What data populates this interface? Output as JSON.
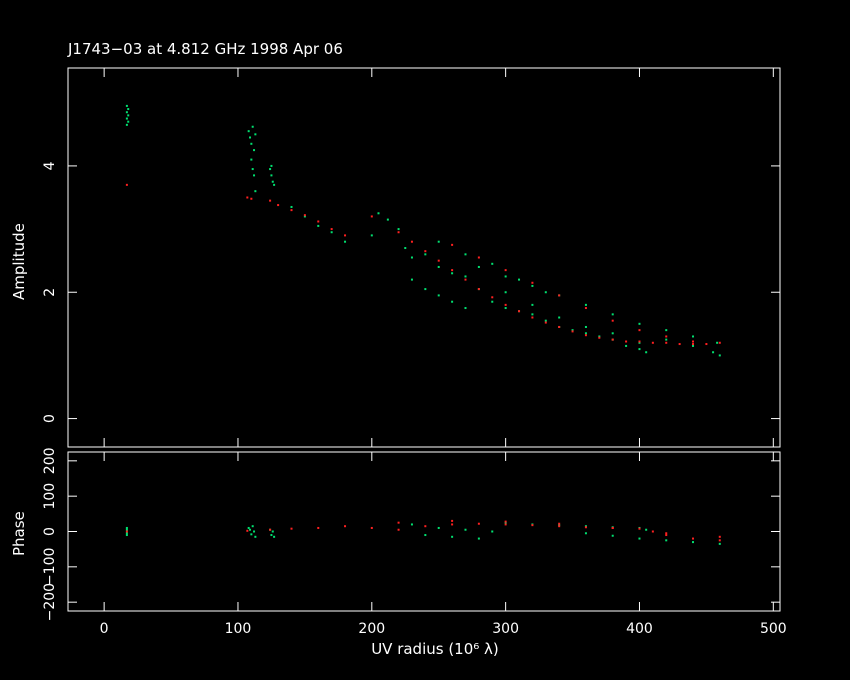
{
  "title": "J1743−03 at 4.812 GHz 1998 Apr 06",
  "colors": {
    "background": "#000000",
    "axes": "#ffffff",
    "observed": "#00e070",
    "model": "#ff2020"
  },
  "chart_data": [
    {
      "type": "scatter",
      "panel": "amplitude",
      "ylabel": "Amplitude",
      "xlim": [
        -27,
        505
      ],
      "ylim": [
        -0.45,
        5.55
      ],
      "yticks": [
        0,
        2,
        4
      ],
      "series": [
        {
          "color": "observed",
          "points": [
            [
              17,
              4.95
            ],
            [
              17,
              4.85
            ],
            [
              17,
              4.75
            ],
            [
              17,
              4.65
            ],
            [
              18,
              4.9
            ],
            [
              18,
              4.8
            ],
            [
              18,
              4.7
            ],
            [
              108,
              4.55
            ],
            [
              109,
              4.45
            ],
            [
              110,
              4.35
            ],
            [
              111,
              4.62
            ],
            [
              112,
              4.25
            ],
            [
              113,
              4.5
            ],
            [
              110,
              4.1
            ],
            [
              111,
              3.95
            ],
            [
              112,
              3.85
            ],
            [
              113,
              3.6
            ],
            [
              124,
              3.95
            ],
            [
              125,
              3.85
            ],
            [
              126,
              3.75
            ],
            [
              127,
              3.7
            ],
            [
              125,
              4.0
            ],
            [
              140,
              3.35
            ],
            [
              150,
              3.2
            ],
            [
              160,
              3.05
            ],
            [
              170,
              2.95
            ],
            [
              180,
              2.8
            ],
            [
              200,
              2.9
            ],
            [
              205,
              3.25
            ],
            [
              212,
              3.15
            ],
            [
              220,
              3.0
            ],
            [
              225,
              2.7
            ],
            [
              230,
              2.55
            ],
            [
              240,
              2.6
            ],
            [
              250,
              2.4
            ],
            [
              260,
              2.3
            ],
            [
              270,
              2.25
            ],
            [
              280,
              2.05
            ],
            [
              290,
              1.85
            ],
            [
              300,
              1.75
            ],
            [
              310,
              1.7
            ],
            [
              320,
              1.65
            ],
            [
              330,
              1.55
            ],
            [
              340,
              1.45
            ],
            [
              350,
              1.4
            ],
            [
              360,
              1.35
            ],
            [
              370,
              1.3
            ],
            [
              380,
              1.25
            ],
            [
              390,
              1.15
            ],
            [
              400,
              1.1
            ],
            [
              405,
              1.05
            ],
            [
              300,
              2.0
            ],
            [
              320,
              1.8
            ],
            [
              340,
              1.6
            ],
            [
              360,
              1.45
            ],
            [
              380,
              1.35
            ],
            [
              400,
              1.2
            ],
            [
              420,
              1.25
            ],
            [
              440,
              1.15
            ],
            [
              455,
              1.05
            ],
            [
              460,
              1.0
            ],
            [
              280,
              2.4
            ],
            [
              300,
              2.25
            ],
            [
              320,
              2.1
            ],
            [
              340,
              1.95
            ],
            [
              360,
              1.8
            ],
            [
              380,
              1.65
            ],
            [
              400,
              1.5
            ],
            [
              420,
              1.4
            ],
            [
              440,
              1.3
            ],
            [
              458,
              1.2
            ],
            [
              230,
              2.2
            ],
            [
              240,
              2.05
            ],
            [
              250,
              1.95
            ],
            [
              260,
              1.85
            ],
            [
              270,
              1.75
            ],
            [
              250,
              2.8
            ],
            [
              270,
              2.6
            ],
            [
              290,
              2.45
            ],
            [
              310,
              2.2
            ],
            [
              330,
              2.0
            ]
          ]
        },
        {
          "color": "model",
          "points": [
            [
              17,
              3.7
            ],
            [
              107,
              3.5
            ],
            [
              110,
              3.48
            ],
            [
              124,
              3.45
            ],
            [
              130,
              3.38
            ],
            [
              140,
              3.3
            ],
            [
              150,
              3.22
            ],
            [
              160,
              3.12
            ],
            [
              170,
              3.0
            ],
            [
              180,
              2.9
            ],
            [
              200,
              3.2
            ],
            [
              220,
              2.95
            ],
            [
              230,
              2.8
            ],
            [
              240,
              2.65
            ],
            [
              250,
              2.5
            ],
            [
              260,
              2.35
            ],
            [
              270,
              2.2
            ],
            [
              280,
              2.05
            ],
            [
              290,
              1.92
            ],
            [
              300,
              1.8
            ],
            [
              310,
              1.7
            ],
            [
              320,
              1.6
            ],
            [
              330,
              1.52
            ],
            [
              340,
              1.45
            ],
            [
              350,
              1.38
            ],
            [
              360,
              1.32
            ],
            [
              370,
              1.28
            ],
            [
              380,
              1.25
            ],
            [
              390,
              1.22
            ],
            [
              400,
              1.22
            ],
            [
              410,
              1.2
            ],
            [
              420,
              1.2
            ],
            [
              430,
              1.18
            ],
            [
              440,
              1.18
            ],
            [
              450,
              1.18
            ],
            [
              460,
              1.2
            ],
            [
              260,
              2.75
            ],
            [
              280,
              2.55
            ],
            [
              300,
              2.35
            ],
            [
              320,
              2.15
            ],
            [
              340,
              1.95
            ],
            [
              360,
              1.75
            ],
            [
              380,
              1.55
            ],
            [
              400,
              1.4
            ],
            [
              420,
              1.3
            ],
            [
              440,
              1.22
            ]
          ]
        }
      ]
    },
    {
      "type": "scatter",
      "panel": "phase",
      "ylabel": "Phase",
      "xlabel": "UV radius  (10⁶ λ)",
      "xlim": [
        -27,
        505
      ],
      "ylim": [
        -225,
        225
      ],
      "yticks": [
        -200,
        -100,
        0,
        100,
        200
      ],
      "ytick_labels": [
        "−200",
        "−100",
        "0",
        "100",
        "200"
      ],
      "xticks": [
        0,
        100,
        200,
        300,
        400,
        500
      ],
      "series": [
        {
          "color": "observed",
          "points": [
            [
              17,
              5
            ],
            [
              17,
              -5
            ],
            [
              17,
              10
            ],
            [
              17,
              -10
            ],
            [
              108,
              10
            ],
            [
              110,
              -8
            ],
            [
              111,
              15
            ],
            [
              112,
              0
            ],
            [
              113,
              -15
            ],
            [
              109,
              5
            ],
            [
              124,
              5
            ],
            [
              125,
              -10
            ],
            [
              126,
              0
            ],
            [
              127,
              -15
            ],
            [
              300,
              25
            ],
            [
              320,
              20
            ],
            [
              340,
              18
            ],
            [
              360,
              15
            ],
            [
              380,
              12
            ],
            [
              400,
              10
            ],
            [
              405,
              5
            ],
            [
              360,
              -5
            ],
            [
              380,
              -12
            ],
            [
              400,
              -20
            ],
            [
              420,
              -25
            ],
            [
              440,
              -30
            ],
            [
              460,
              -35
            ],
            [
              230,
              20
            ],
            [
              250,
              10
            ],
            [
              270,
              5
            ],
            [
              290,
              0
            ],
            [
              240,
              -10
            ],
            [
              260,
              -15
            ],
            [
              280,
              -20
            ]
          ]
        },
        {
          "color": "model",
          "points": [
            [
              17,
              0
            ],
            [
              107,
              2
            ],
            [
              124,
              5
            ],
            [
              140,
              8
            ],
            [
              160,
              10
            ],
            [
              180,
              15
            ],
            [
              200,
              10
            ],
            [
              220,
              5
            ],
            [
              240,
              15
            ],
            [
              260,
              20
            ],
            [
              280,
              22
            ],
            [
              300,
              20
            ],
            [
              320,
              18
            ],
            [
              340,
              15
            ],
            [
              360,
              12
            ],
            [
              380,
              10
            ],
            [
              400,
              8
            ],
            [
              410,
              0
            ],
            [
              420,
              -10
            ],
            [
              440,
              -20
            ],
            [
              460,
              -25
            ],
            [
              220,
              25
            ],
            [
              260,
              30
            ],
            [
              300,
              28
            ],
            [
              340,
              22
            ],
            [
              380,
              10
            ],
            [
              420,
              -5
            ],
            [
              460,
              -15
            ]
          ]
        }
      ]
    }
  ]
}
